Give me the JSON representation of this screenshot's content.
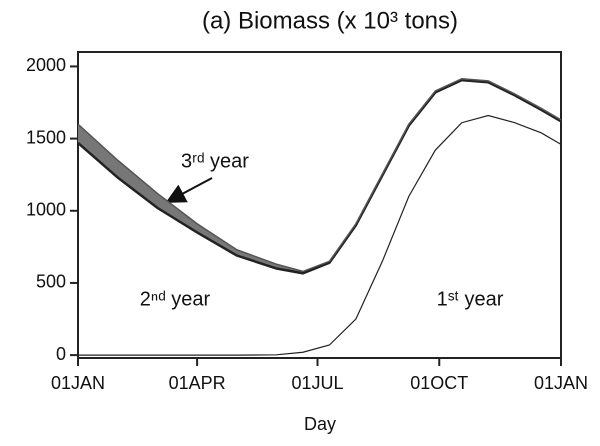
{
  "chart_data": {
    "type": "line",
    "title": "(a) Biomass (x 10³ tons)",
    "xlabel": "Day",
    "xlim": [
      0,
      365
    ],
    "xticks": [
      {
        "value": 0,
        "label": "01JAN"
      },
      {
        "value": 90,
        "label": "01APR"
      },
      {
        "value": 181,
        "label": "01JUL"
      },
      {
        "value": 273,
        "label": "01OCT"
      },
      {
        "value": 365,
        "label": "01JAN"
      }
    ],
    "ylim": [
      -20,
      2100
    ],
    "yticks": [
      0,
      500,
      1000,
      1500,
      2000
    ],
    "x": [
      0,
      30,
      60,
      90,
      120,
      150,
      170,
      190,
      210,
      230,
      250,
      270,
      290,
      310,
      330,
      350,
      365
    ],
    "series": [
      {
        "name": "1ˢᵗ year",
        "color": "#222222",
        "values": [
          0,
          0,
          0,
          0,
          0,
          2,
          20,
          70,
          250,
          650,
          1100,
          1420,
          1610,
          1660,
          1610,
          1540,
          1460
        ]
      },
      {
        "name": "2ⁿᵈ year",
        "color": "#222222",
        "values": [
          1470,
          1230,
          1020,
          850,
          690,
          600,
          567,
          640,
          900,
          1245,
          1590,
          1820,
          1905,
          1890,
          1800,
          1700,
          1620
        ]
      },
      {
        "name": "3ʳᵈ year",
        "color": "#555555",
        "values": [
          1600,
          1350,
          1120,
          910,
          730,
          630,
          580,
          650,
          910,
          1255,
          1600,
          1830,
          1915,
          1900,
          1810,
          1710,
          1630
        ]
      }
    ]
  }
}
